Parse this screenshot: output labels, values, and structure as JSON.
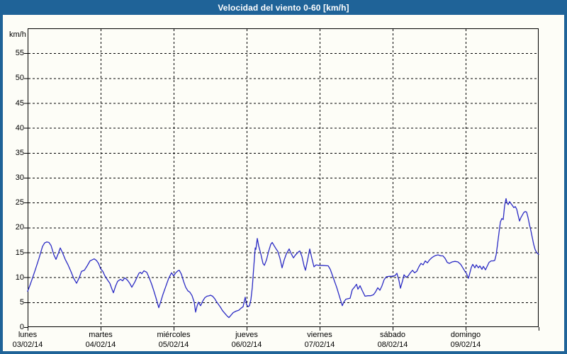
{
  "window": {
    "title": "Velocidad del viento 0-60 [km/h]"
  },
  "colors": {
    "title_bar_bg": "#1f6398",
    "title_text": "#ffffff",
    "frame": "#1f6398",
    "content_bg": "#fdfdf7",
    "plot_bg": "#fdfdf7",
    "plot_border": "#000000",
    "gridline": "#000000",
    "tick": "#000000",
    "label_text": "#000000",
    "line": "#2b2bc4"
  },
  "chart_data": {
    "type": "line",
    "title": "Velocidad del viento 0-60 [km/h]",
    "xlabel": "",
    "ylabel": "km/h",
    "ylim": [
      0,
      60
    ],
    "yticks": [
      0,
      5,
      10,
      15,
      20,
      25,
      30,
      35,
      40,
      45,
      50,
      55
    ],
    "xlim_days": [
      0,
      7
    ],
    "grid": "dashed-both-axes",
    "legend": "none",
    "x_categories": [
      {
        "day": "lunes",
        "date": "03/02/14"
      },
      {
        "day": "martes",
        "date": "04/02/14"
      },
      {
        "day": "miércoles",
        "date": "05/02/14"
      },
      {
        "day": "jueves",
        "date": "06/02/14"
      },
      {
        "day": "viernes",
        "date": "07/02/14"
      },
      {
        "day": "sábado",
        "date": "08/02/14"
      },
      {
        "day": "domingo",
        "date": "09/02/14"
      }
    ],
    "series": [
      {
        "name": "Velocidad del viento",
        "color": "#2b2bc4",
        "points": [
          [
            0.0,
            7.2
          ],
          [
            0.029,
            8.3
          ],
          [
            0.058,
            9.5
          ],
          [
            0.107,
            11.6
          ],
          [
            0.155,
            13.8
          ],
          [
            0.204,
            16.2
          ],
          [
            0.233,
            16.9
          ],
          [
            0.262,
            17.1
          ],
          [
            0.291,
            17.0
          ],
          [
            0.32,
            16.4
          ],
          [
            0.359,
            14.5
          ],
          [
            0.388,
            13.6
          ],
          [
            0.417,
            14.7
          ],
          [
            0.447,
            15.9
          ],
          [
            0.476,
            15.0
          ],
          [
            0.515,
            13.6
          ],
          [
            0.553,
            12.5
          ],
          [
            0.592,
            11.2
          ],
          [
            0.631,
            9.8
          ],
          [
            0.67,
            8.8
          ],
          [
            0.709,
            10.0
          ],
          [
            0.738,
            11.2
          ],
          [
            0.777,
            11.4
          ],
          [
            0.816,
            12.3
          ],
          [
            0.854,
            13.3
          ],
          [
            0.883,
            13.5
          ],
          [
            0.913,
            13.7
          ],
          [
            0.942,
            13.4
          ],
          [
            0.971,
            12.8
          ],
          [
            1.0,
            11.7
          ],
          [
            1.029,
            11.2
          ],
          [
            1.058,
            10.3
          ],
          [
            1.097,
            9.4
          ],
          [
            1.126,
            8.8
          ],
          [
            1.155,
            7.6
          ],
          [
            1.175,
            6.9
          ],
          [
            1.204,
            8.2
          ],
          [
            1.233,
            9.2
          ],
          [
            1.272,
            9.6
          ],
          [
            1.301,
            9.3
          ],
          [
            1.33,
            9.9
          ],
          [
            1.369,
            9.4
          ],
          [
            1.398,
            8.8
          ],
          [
            1.427,
            8.0
          ],
          [
            1.466,
            9.0
          ],
          [
            1.495,
            9.9
          ],
          [
            1.524,
            10.8
          ],
          [
            1.544,
            11.0
          ],
          [
            1.563,
            10.7
          ],
          [
            1.592,
            11.3
          ],
          [
            1.631,
            11.0
          ],
          [
            1.66,
            10.1
          ],
          [
            1.699,
            8.6
          ],
          [
            1.728,
            7.3
          ],
          [
            1.757,
            5.9
          ],
          [
            1.796,
            3.9
          ],
          [
            1.825,
            5.2
          ],
          [
            1.854,
            6.6
          ],
          [
            1.893,
            8.2
          ],
          [
            1.932,
            9.8
          ],
          [
            1.971,
            10.9
          ],
          [
            2.0,
            10.3
          ],
          [
            2.029,
            10.9
          ],
          [
            2.058,
            11.3
          ],
          [
            2.078,
            11.4
          ],
          [
            2.107,
            10.6
          ],
          [
            2.136,
            9.2
          ],
          [
            2.165,
            8.0
          ],
          [
            2.194,
            7.3
          ],
          [
            2.223,
            7.0
          ],
          [
            2.252,
            6.3
          ],
          [
            2.282,
            5.0
          ],
          [
            2.301,
            3.0
          ],
          [
            2.32,
            4.2
          ],
          [
            2.34,
            5.0
          ],
          [
            2.369,
            4.3
          ],
          [
            2.398,
            5.2
          ],
          [
            2.427,
            5.9
          ],
          [
            2.456,
            6.2
          ],
          [
            2.485,
            6.3
          ],
          [
            2.505,
            6.4
          ],
          [
            2.534,
            6.2
          ],
          [
            2.563,
            5.7
          ],
          [
            2.583,
            5.2
          ],
          [
            2.612,
            4.6
          ],
          [
            2.641,
            4.0
          ],
          [
            2.67,
            3.3
          ],
          [
            2.699,
            2.8
          ],
          [
            2.728,
            2.3
          ],
          [
            2.757,
            1.9
          ],
          [
            2.786,
            2.4
          ],
          [
            2.816,
            2.9
          ],
          [
            2.854,
            3.2
          ],
          [
            2.893,
            3.4
          ],
          [
            2.922,
            3.8
          ],
          [
            2.951,
            4.1
          ],
          [
            2.981,
            6.0
          ],
          [
            3.0,
            4.5
          ],
          [
            3.019,
            4.1
          ],
          [
            3.039,
            4.3
          ],
          [
            3.058,
            5.5
          ],
          [
            3.078,
            8.0
          ],
          [
            3.097,
            12.0
          ],
          [
            3.117,
            15.9
          ],
          [
            3.126,
            15.6
          ],
          [
            3.146,
            17.8
          ],
          [
            3.165,
            16.3
          ],
          [
            3.194,
            14.7
          ],
          [
            3.223,
            12.8
          ],
          [
            3.243,
            12.4
          ],
          [
            3.272,
            13.5
          ],
          [
            3.301,
            15.2
          ],
          [
            3.33,
            16.6
          ],
          [
            3.35,
            17.0
          ],
          [
            3.379,
            16.3
          ],
          [
            3.408,
            15.6
          ],
          [
            3.427,
            15.2
          ],
          [
            3.456,
            13.8
          ],
          [
            3.485,
            11.9
          ],
          [
            3.515,
            13.5
          ],
          [
            3.544,
            14.7
          ],
          [
            3.583,
            15.7
          ],
          [
            3.612,
            14.7
          ],
          [
            3.641,
            13.9
          ],
          [
            3.67,
            14.5
          ],
          [
            3.709,
            15.1
          ],
          [
            3.728,
            15.3
          ],
          [
            3.757,
            14.2
          ],
          [
            3.786,
            12.3
          ],
          [
            3.806,
            11.4
          ],
          [
            3.835,
            13.5
          ],
          [
            3.864,
            15.7
          ],
          [
            3.893,
            13.8
          ],
          [
            3.922,
            12.1
          ],
          [
            3.951,
            12.5
          ],
          [
            3.99,
            12.4
          ],
          [
            4.039,
            12.4
          ],
          [
            4.117,
            12.3
          ],
          [
            4.146,
            11.6
          ],
          [
            4.175,
            10.4
          ],
          [
            4.204,
            9.2
          ],
          [
            4.233,
            8.0
          ],
          [
            4.262,
            6.6
          ],
          [
            4.291,
            5.2
          ],
          [
            4.311,
            4.3
          ],
          [
            4.33,
            5.0
          ],
          [
            4.359,
            5.6
          ],
          [
            4.388,
            5.7
          ],
          [
            4.417,
            5.8
          ],
          [
            4.447,
            7.5
          ],
          [
            4.476,
            8.0
          ],
          [
            4.505,
            8.6
          ],
          [
            4.524,
            7.6
          ],
          [
            4.553,
            8.3
          ],
          [
            4.582,
            7.4
          ],
          [
            4.621,
            6.2
          ],
          [
            4.66,
            6.3
          ],
          [
            4.699,
            6.3
          ],
          [
            4.738,
            6.5
          ],
          [
            4.767,
            7.1
          ],
          [
            4.796,
            7.9
          ],
          [
            4.825,
            7.4
          ],
          [
            4.854,
            8.3
          ],
          [
            4.883,
            9.5
          ],
          [
            4.913,
            10.1
          ],
          [
            4.951,
            10.2
          ],
          [
            4.99,
            10.2
          ],
          [
            5.029,
            10.3
          ],
          [
            5.058,
            10.8
          ],
          [
            5.087,
            9.3
          ],
          [
            5.107,
            7.8
          ],
          [
            5.136,
            9.3
          ],
          [
            5.155,
            10.5
          ],
          [
            5.184,
            10.0
          ],
          [
            5.214,
            10.3
          ],
          [
            5.243,
            10.9
          ],
          [
            5.272,
            11.4
          ],
          [
            5.301,
            10.9
          ],
          [
            5.33,
            11.2
          ],
          [
            5.359,
            12.1
          ],
          [
            5.388,
            12.8
          ],
          [
            5.417,
            12.5
          ],
          [
            5.447,
            13.3
          ],
          [
            5.476,
            12.9
          ],
          [
            5.505,
            13.5
          ],
          [
            5.534,
            13.9
          ],
          [
            5.563,
            14.2
          ],
          [
            5.592,
            14.4
          ],
          [
            5.621,
            14.5
          ],
          [
            5.66,
            14.3
          ],
          [
            5.689,
            14.3
          ],
          [
            5.718,
            13.8
          ],
          [
            5.748,
            13.0
          ],
          [
            5.777,
            12.8
          ],
          [
            5.816,
            13.1
          ],
          [
            5.854,
            13.2
          ],
          [
            5.893,
            13.1
          ],
          [
            5.932,
            12.6
          ],
          [
            5.961,
            11.9
          ],
          [
            5.99,
            11.2
          ],
          [
            6.01,
            10.8
          ],
          [
            6.039,
            9.8
          ],
          [
            6.058,
            10.9
          ],
          [
            6.078,
            12.0
          ],
          [
            6.097,
            12.6
          ],
          [
            6.126,
            11.9
          ],
          [
            6.146,
            12.5
          ],
          [
            6.175,
            11.9
          ],
          [
            6.194,
            12.3
          ],
          [
            6.223,
            11.6
          ],
          [
            6.243,
            12.2
          ],
          [
            6.272,
            11.5
          ],
          [
            6.291,
            12.1
          ],
          [
            6.32,
            13.0
          ],
          [
            6.35,
            13.3
          ],
          [
            6.379,
            13.3
          ],
          [
            6.398,
            13.4
          ],
          [
            6.417,
            14.5
          ],
          [
            6.437,
            16.6
          ],
          [
            6.456,
            18.9
          ],
          [
            6.476,
            21.1
          ],
          [
            6.495,
            21.8
          ],
          [
            6.515,
            21.6
          ],
          [
            6.534,
            24.4
          ],
          [
            6.553,
            25.8
          ],
          [
            6.563,
            25.1
          ],
          [
            6.583,
            24.6
          ],
          [
            6.602,
            25.2
          ],
          [
            6.621,
            24.8
          ],
          [
            6.641,
            24.4
          ],
          [
            6.66,
            24.0
          ],
          [
            6.68,
            24.2
          ],
          [
            6.699,
            23.7
          ],
          [
            6.718,
            22.5
          ],
          [
            6.738,
            21.3
          ],
          [
            6.757,
            22.0
          ],
          [
            6.777,
            22.5
          ],
          [
            6.796,
            23.0
          ],
          [
            6.816,
            23.2
          ],
          [
            6.835,
            23.1
          ],
          [
            6.854,
            22.0
          ],
          [
            6.874,
            20.6
          ],
          [
            6.893,
            19.4
          ],
          [
            6.913,
            18.0
          ],
          [
            6.932,
            16.6
          ],
          [
            6.951,
            15.6
          ],
          [
            6.971,
            15.0
          ],
          [
            7.0,
            14.6
          ]
        ]
      }
    ]
  }
}
